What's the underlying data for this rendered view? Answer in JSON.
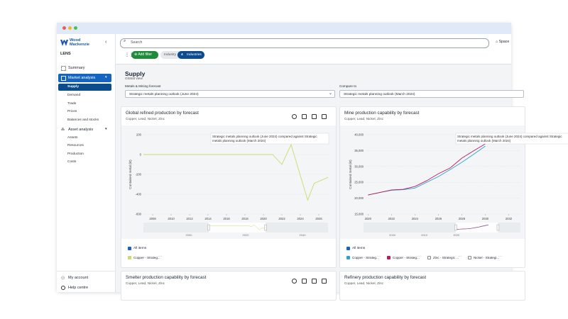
{
  "sidebar": {
    "brand": "Wood Mackenzie",
    "product": "LENS",
    "nav": [
      {
        "label": "Summary"
      },
      {
        "label": "Market analysis",
        "children": [
          "Supply",
          "Demand",
          "Trade",
          "Prices",
          "Balances and stocks"
        ]
      },
      {
        "label": "Asset analysis",
        "children": [
          "Assets",
          "Resources",
          "Production",
          "Costs"
        ]
      }
    ],
    "footer": [
      "My account",
      "Help centre"
    ]
  },
  "topbar": {
    "search": "Search",
    "spaces": "Space",
    "add_filter": "Add filter",
    "filter_label": "Industry",
    "filter_count": "4",
    "filter_value": "Industries"
  },
  "page": {
    "title": "Supply",
    "subtitle": "Global view",
    "selectors": [
      {
        "label": "Metals & Mining forecast",
        "value": "Strategic metals planning outlook (June 2024)"
      },
      {
        "label": "Compare to",
        "value": "Strategic metals planning outlook (March 2024)"
      }
    ]
  },
  "panels": [
    {
      "title": "Global refined production by forecast",
      "subtitle": "Copper, Lead, Nickel, Zinc",
      "chart": {
        "type": "line",
        "y_label": "Contained metal (kt)",
        "tooltip": "Strategic metals planning outlook (June 2024) compared against Strategic metals planning outlook (March 2024)",
        "xlim": [
          2007,
          2027
        ],
        "xticks": [
          2008,
          2010,
          2012,
          2014,
          2016,
          2018,
          2020,
          2022,
          2024,
          2026
        ],
        "ylim": [
          -600,
          200
        ],
        "yticks": [
          200,
          0,
          -200,
          -400,
          -600
        ],
        "x": [
          2007,
          2021,
          2022,
          2023,
          2024.8,
          2025.5,
          2027
        ],
        "series": [
          {
            "color": "#c9dc6c",
            "values": [
              0,
              0,
              -100,
              100,
              -460,
              -290,
              -230
            ]
          }
        ],
        "navigator": {
          "xlim": [
            1984,
            2049
          ],
          "ticks": [
            2000,
            2020,
            2040
          ]
        },
        "legend": {
          "all": "All items",
          "items": [
            {
              "label": "Copper - Strateg...",
              "color": "#c9dc6c"
            }
          ]
        }
      }
    },
    {
      "title": "Mine production capability by forecast",
      "subtitle": "Copper, Lead, Nickel, Zinc",
      "chart": {
        "type": "line",
        "y_label": "Contained metal (kt)",
        "tooltip": "Strategic metals planning outlook (June 2024) compared against Strategic metals planning outlook (March 2024)",
        "xlim": [
          2019.8,
          2033
        ],
        "xticks": [
          2020,
          2022,
          2024,
          2026,
          2028,
          2030,
          2032
        ],
        "ylim": [
          15000,
          40000
        ],
        "yticks": [
          {
            "value": 40000,
            "label": "40,000"
          },
          {
            "value": 35000,
            "label": "35,000"
          },
          {
            "value": 30000,
            "label": "30,000"
          },
          {
            "value": 25000,
            "label": "25,000"
          },
          {
            "value": 20000,
            "label": "20,000"
          },
          {
            "value": 15000,
            "label": "15,000"
          }
        ],
        "x": [
          2020,
          2021,
          2022,
          2023,
          2024,
          2025,
          2026,
          2027,
          2028,
          2029,
          2030
        ],
        "series": [
          {
            "color": "#29a3d8",
            "values": [
              21000,
              21800,
              22500,
              22700,
              23200,
              25000,
              26800,
              29000,
              31300,
              33800,
              36400
            ]
          },
          {
            "color": "#c2185b",
            "values": [
              21000,
              21800,
              22600,
              22800,
              23700,
              25500,
              27700,
              29500,
              32600,
              34900,
              37100
            ]
          }
        ],
        "navigator": {
          "xlim": [
            1991,
            2040
          ],
          "ticks": [
            2000,
            2010,
            2020
          ]
        },
        "legend": {
          "all": "All items",
          "items": [
            {
              "label": "Copper - Strateg...",
              "color": "#29a3d8"
            },
            {
              "label": "Copper - Strateg...",
              "color": "#c2185b"
            },
            {
              "label": "Zinc - Strategic ...",
              "color": null
            },
            {
              "label": "Nickel - Strategi...",
              "color": null
            }
          ]
        }
      }
    },
    {
      "title": "Smelter production capability by forecast",
      "subtitle": "Copper, Lead, Nickel, Zinc"
    },
    {
      "title": "Refinery production capability by forecast",
      "subtitle": "Copper, Lead, Nickel, Zinc"
    }
  ]
}
